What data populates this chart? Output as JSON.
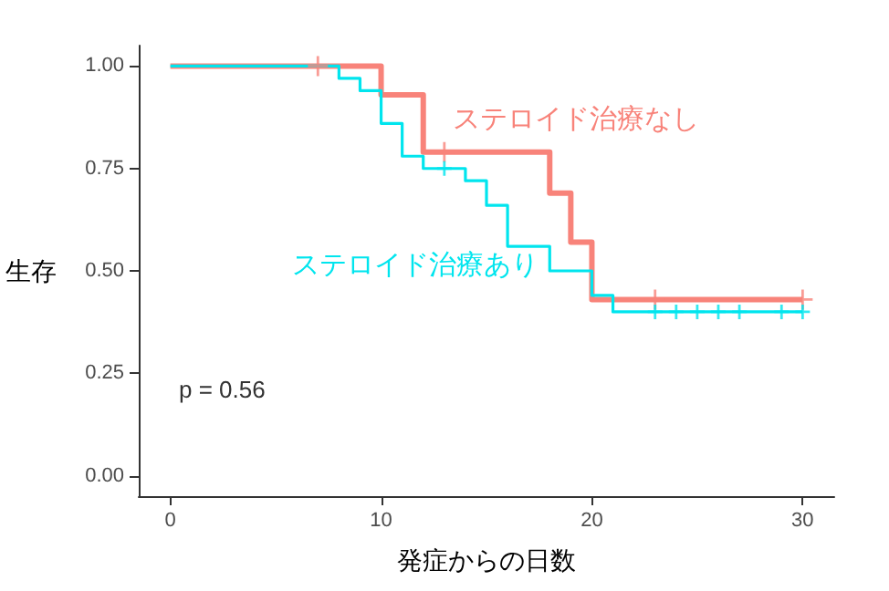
{
  "chart_data": {
    "type": "step",
    "xlabel": "発症からの日数",
    "ylabel": "生存",
    "xlim": [
      -1.5,
      31.5
    ],
    "ylim": [
      -0.05,
      1.05
    ],
    "xticks": [
      0,
      10,
      20,
      30
    ],
    "yticks": [
      {
        "value": 0,
        "label": "0.00"
      },
      {
        "value": 0.25,
        "label": "0.25"
      },
      {
        "value": 0.5,
        "label": "0.50"
      },
      {
        "value": 0.75,
        "label": "0.75"
      },
      {
        "value": 1,
        "label": "1.00"
      }
    ],
    "grid": false,
    "legend": false,
    "line_style": "solid",
    "annotations": [
      "p = 0.56"
    ],
    "series": [
      {
        "name": "ステロイド治療なし",
        "color": "#f8837a",
        "marker": "none",
        "x": [
          0,
          10,
          12,
          18,
          19,
          20,
          30
        ],
        "values": [
          1,
          0.93,
          0.79,
          0.69,
          0.57,
          0.43,
          0.43
        ]
      },
      {
        "name": "ステロイド治療あり",
        "color": "#00e5ee",
        "marker": "none",
        "x": [
          0,
          8,
          9,
          10,
          11,
          12,
          14,
          15,
          16,
          18,
          20,
          21,
          30
        ],
        "values": [
          1,
          0.97,
          0.94,
          0.86,
          0.78,
          0.75,
          0.72,
          0.66,
          0.56,
          0.5,
          0.44,
          0.4,
          0.4
        ]
      },
      {
        "type": "scatter",
        "color": "#f8837a",
        "marker": "cross",
        "x": [
          7,
          13,
          23,
          30
        ],
        "values": [
          1,
          0.79,
          0.43,
          0.43
        ]
      },
      {
        "type": "scatter",
        "color": "#00e5ee",
        "marker": "cross",
        "x": [
          13,
          23,
          24,
          25,
          26,
          27,
          29,
          30
        ],
        "values": [
          0.75,
          0.4,
          0.4,
          0.4,
          0.4,
          0.4,
          0.4,
          0.4
        ]
      }
    ]
  }
}
